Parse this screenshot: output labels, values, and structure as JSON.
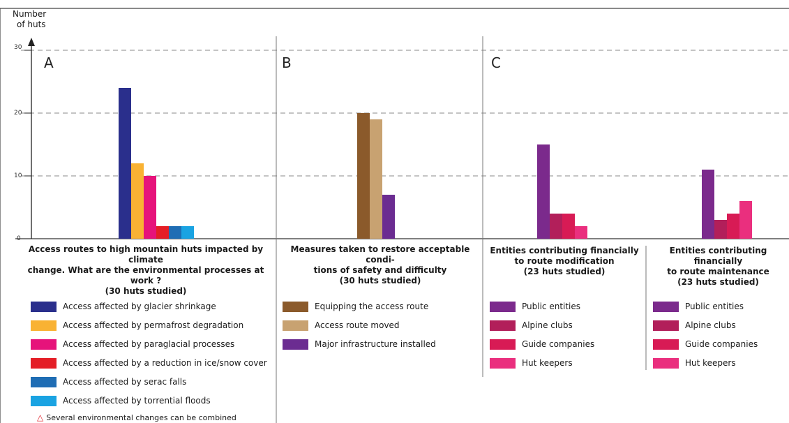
{
  "chart_data": {
    "type": "bar",
    "y_title": [
      "Number",
      "of huts"
    ],
    "y_ticks": [
      "0",
      "10",
      "20",
      "30"
    ],
    "ylim": [
      0,
      30
    ],
    "grid": "dashed horizontal at 10, 20, 30",
    "panels": [
      {
        "label": "A",
        "title": [
          "Access routes to high mountain huts  impacted by climate",
          "change. What are the environmental processes at work ?",
          "(30 huts studied)"
        ],
        "series": [
          {
            "name": "Access affected by glacier shrinkage",
            "value": 24,
            "color": "#2a2f8c"
          },
          {
            "name": "Access affected by permafrost degradation",
            "value": 12,
            "color": "#f9b233"
          },
          {
            "name": "Access affected by paraglacial processes",
            "value": 10,
            "color": "#e6137b"
          },
          {
            "name": "Access affected by a reduction in ice/snow cover",
            "value": 2,
            "color": "#e41e26"
          },
          {
            "name": "Access affected by serac falls",
            "value": 2,
            "color": "#1f6db4"
          },
          {
            "name": "Access affected by torrential floods",
            "value": 2,
            "color": "#1aa3e2"
          }
        ]
      },
      {
        "label": "B",
        "title": [
          "Measures taken to restore acceptable condi-",
          "tions of safety and difficulty",
          "(30 huts studied)"
        ],
        "series": [
          {
            "name": "Equipping the access route",
            "value": 20,
            "color": "#8b5a2b"
          },
          {
            "name": "Access route moved",
            "value": 19,
            "color": "#c8a271"
          },
          {
            "name": "Major infrastructure installed",
            "value": 7,
            "color": "#6b2c91"
          }
        ]
      },
      {
        "label": "C",
        "groups": [
          {
            "title": [
              "Entities contributing financially",
              "to route modification",
              "(23 huts studied)"
            ],
            "series": [
              {
                "name": "Public entities",
                "value": 15,
                "color": "#7b2a8c"
              },
              {
                "name": "Alpine clubs",
                "value": 4,
                "color": "#b21f5a"
              },
              {
                "name": "Guide companies",
                "value": 4,
                "color": "#d81b55"
              },
              {
                "name": "Hut keepers",
                "value": 2,
                "color": "#ea2f7e"
              }
            ]
          },
          {
            "title": [
              "Entities contributing financially",
              "to route maintenance",
              "(23 huts studied)"
            ],
            "series": [
              {
                "name": "Public entities",
                "value": 11,
                "color": "#7b2a8c"
              },
              {
                "name": "Alpine clubs",
                "value": 3,
                "color": "#b21f5a"
              },
              {
                "name": "Guide companies",
                "value": 4,
                "color": "#d81b55"
              },
              {
                "name": "Hut keepers",
                "value": 6,
                "color": "#ea2f7e"
              }
            ]
          }
        ]
      }
    ],
    "note": "Several environmental changes can be combined",
    "note_icon": "warning-triangle-icon"
  }
}
